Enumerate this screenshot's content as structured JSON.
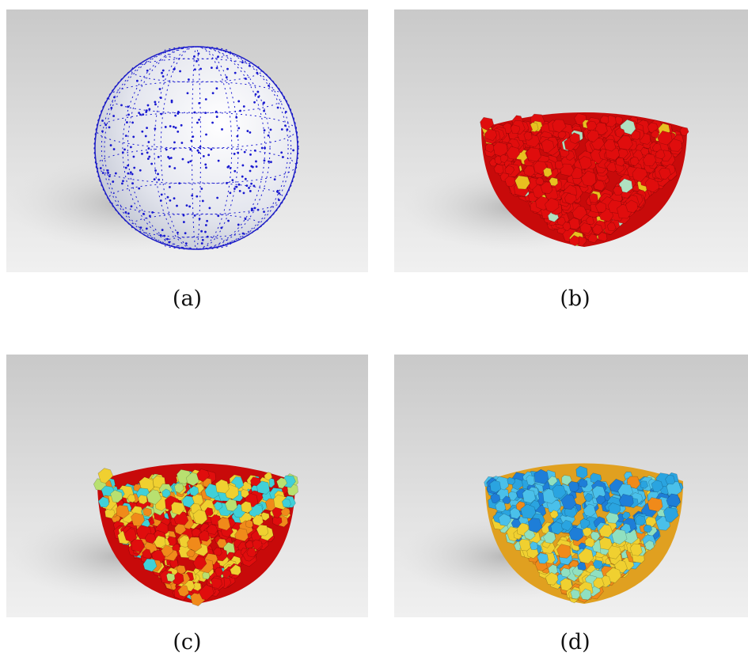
{
  "figure": {
    "panels": [
      {
        "label": "(a)",
        "render": "wireframe-sphere",
        "colors": [
          "#1a1ad0"
        ]
      },
      {
        "label": "(b)",
        "render": "hemisphere-particles",
        "colors": [
          "#e00d0d",
          "#e8c020",
          "#b0e0c0"
        ]
      },
      {
        "label": "(c)",
        "render": "hemisphere-particles",
        "colors": [
          "#e00d0d",
          "#f08a1a",
          "#f0d030",
          "#40d0d8",
          "#b8e070"
        ]
      },
      {
        "label": "(d)",
        "render": "hemisphere-particles",
        "colors": [
          "#2aa4e0",
          "#4ac0ea",
          "#1e7ed8",
          "#f0d030",
          "#f08a1a",
          "#90e0c0"
        ]
      }
    ]
  }
}
